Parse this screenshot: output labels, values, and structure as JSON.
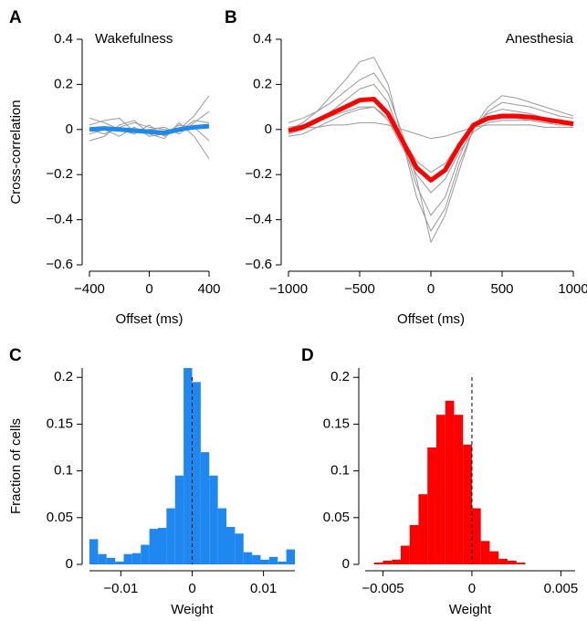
{
  "chart_data": [
    {
      "type": "line",
      "panel_label": "A",
      "annotation": "Wakefulness",
      "xlabel": "Offset (ms)",
      "ylabel": "Cross-correlation",
      "xlim": [
        -400,
        400
      ],
      "ylim": [
        -0.6,
        0.4
      ],
      "xticks": [
        {
          "value": -400,
          "label": "−400"
        },
        0,
        400
      ],
      "yticks": [
        {
          "value": -0.6,
          "label": "−0.6"
        },
        {
          "value": -0.4,
          "label": "−0.4"
        },
        {
          "value": -0.2,
          "label": "−0.2"
        },
        0,
        0.2,
        0.4
      ],
      "x": [
        -400,
        -300,
        -200,
        -100,
        0,
        100,
        200,
        300,
        400
      ],
      "series": [
        {
          "color": "#999999",
          "values": [
            0.05,
            0.03,
            0.0,
            -0.02,
            0.02,
            -0.03,
            0.0,
            0.06,
            0.15
          ]
        },
        {
          "color": "#999999",
          "values": [
            -0.05,
            -0.03,
            0.02,
            0.04,
            -0.02,
            -0.04,
            0.03,
            -0.03,
            -0.13
          ]
        },
        {
          "color": "#999999",
          "values": [
            0.02,
            0.04,
            0.05,
            -0.01,
            0.0,
            0.01,
            -0.02,
            0.03,
            0.08
          ]
        },
        {
          "color": "#999999",
          "values": [
            -0.02,
            0.0,
            -0.03,
            0.01,
            -0.03,
            -0.02,
            0.02,
            0.01,
            -0.05
          ]
        },
        {
          "color": "#999999",
          "values": [
            0.0,
            -0.02,
            0.01,
            0.03,
            0.01,
            0.0,
            -0.01,
            0.04,
            0.03
          ]
        },
        {
          "color": "#1f8be8",
          "values": [
            0.0,
            0.005,
            0.0,
            -0.005,
            -0.01,
            -0.015,
            0.0,
            0.01,
            0.015
          ]
        }
      ]
    },
    {
      "type": "line",
      "panel_label": "B",
      "annotation": "Anesthesia",
      "xlabel": "Offset (ms)",
      "xlim": [
        -1000,
        1000
      ],
      "ylim": [
        -0.6,
        0.4
      ],
      "xticks": [
        {
          "value": -1000,
          "label": "−1000"
        },
        {
          "value": -500,
          "label": "−500"
        },
        0,
        500,
        1000
      ],
      "yticks": [
        {
          "value": -0.6,
          "label": "−0.6"
        },
        {
          "value": -0.4,
          "label": "−0.4"
        },
        {
          "value": -0.2,
          "label": "−0.2"
        },
        0,
        0.2,
        0.4
      ],
      "x": [
        -1000,
        -900,
        -800,
        -700,
        -600,
        -500,
        -400,
        -300,
        -200,
        -100,
        0,
        100,
        200,
        300,
        400,
        500,
        600,
        700,
        800,
        900,
        1000
      ],
      "series": [
        {
          "color": "#999999",
          "values": [
            0.0,
            0.03,
            0.08,
            0.15,
            0.22,
            0.3,
            0.32,
            0.2,
            -0.05,
            -0.3,
            -0.45,
            -0.35,
            -0.15,
            0.0,
            0.08,
            0.12,
            0.11,
            0.1,
            0.08,
            0.06,
            0.05
          ]
        },
        {
          "color": "#999999",
          "values": [
            -0.02,
            0.0,
            0.03,
            0.08,
            0.13,
            0.18,
            0.2,
            0.12,
            -0.05,
            -0.25,
            -0.38,
            -0.3,
            -0.12,
            0.02,
            0.07,
            0.09,
            0.08,
            0.07,
            0.05,
            0.04,
            0.03
          ]
        },
        {
          "color": "#999999",
          "values": [
            0.01,
            0.02,
            0.04,
            0.06,
            0.08,
            0.1,
            0.1,
            0.05,
            -0.04,
            -0.14,
            -0.19,
            -0.15,
            -0.06,
            0.01,
            0.04,
            0.05,
            0.05,
            0.04,
            0.03,
            0.03,
            0.02
          ]
        },
        {
          "color": "#999999",
          "values": [
            0.0,
            0.01,
            0.01,
            0.02,
            0.02,
            0.03,
            0.03,
            0.02,
            0.0,
            -0.02,
            -0.04,
            -0.03,
            -0.01,
            0.01,
            0.02,
            0.02,
            0.02,
            0.02,
            0.01,
            0.01,
            0.01
          ]
        },
        {
          "color": "#999999",
          "values": [
            0.03,
            0.05,
            0.08,
            0.12,
            0.17,
            0.22,
            0.25,
            0.16,
            -0.02,
            -0.22,
            -0.5,
            -0.38,
            -0.18,
            0.01,
            0.1,
            0.15,
            0.14,
            0.12,
            0.1,
            0.08,
            0.06
          ]
        },
        {
          "color": "#999999",
          "values": [
            -0.03,
            -0.02,
            0.01,
            0.04,
            0.07,
            0.09,
            0.1,
            0.04,
            -0.08,
            -0.2,
            -0.28,
            -0.22,
            -0.1,
            -0.01,
            0.03,
            0.04,
            0.04,
            0.04,
            0.03,
            0.02,
            0.02
          ]
        },
        {
          "color": "#ff0000",
          "values": [
            -0.005,
            0.01,
            0.04,
            0.07,
            0.1,
            0.13,
            0.135,
            0.07,
            -0.05,
            -0.17,
            -0.225,
            -0.18,
            -0.07,
            0.02,
            0.05,
            0.06,
            0.06,
            0.055,
            0.045,
            0.035,
            0.025
          ]
        }
      ]
    },
    {
      "type": "histogram",
      "panel_label": "C",
      "xlabel": "Weight",
      "ylabel": "Fraction of cells",
      "color": "#1e88f0",
      "vline": 0,
      "xlim": [
        -0.0144,
        0.0144
      ],
      "ylim": [
        0,
        0.21
      ],
      "xticks": [
        {
          "value": -0.01,
          "label": "−0.01"
        },
        0,
        0.01
      ],
      "yticks": [
        0,
        0.05,
        0.1,
        0.15,
        0.2
      ],
      "bins": [
        -0.0144,
        -0.0132,
        -0.012,
        -0.0108,
        -0.0096,
        -0.0084,
        -0.0072,
        -0.006,
        -0.0048,
        -0.0036,
        -0.0024,
        -0.0012,
        0,
        0.0012,
        0.0024,
        0.0036,
        0.0048,
        0.006,
        0.0072,
        0.0084,
        0.0096,
        0.0108,
        0.012,
        0.0132,
        0.0144
      ],
      "values": [
        0.027,
        0.011,
        0.007,
        0.003,
        0.011,
        0.012,
        0.021,
        0.038,
        0.039,
        0.06,
        0.095,
        0.21,
        0.195,
        0.12,
        0.095,
        0.06,
        0.04,
        0.033,
        0.013,
        0.01,
        0.005,
        0.008,
        0.003,
        0.016
      ]
    },
    {
      "type": "histogram",
      "panel_label": "D",
      "xlabel": "Weight",
      "color": "#ff0000",
      "vline": 0,
      "xlim": [
        -0.006,
        0.0058
      ],
      "ylim": [
        0,
        0.21
      ],
      "xticks": [
        {
          "value": -0.005,
          "label": "−0.005"
        },
        0,
        0.005
      ],
      "yticks": [
        0,
        0.05,
        0.1,
        0.15,
        0.2
      ],
      "bins": [
        -0.0055,
        -0.005,
        -0.0045,
        -0.004,
        -0.0035,
        -0.003,
        -0.0025,
        -0.002,
        -0.0015,
        -0.001,
        -0.0005,
        0,
        0.0005,
        0.001,
        0.0015,
        0.002,
        0.0025,
        0.003
      ],
      "values": [
        0.002,
        0.004,
        0.005,
        0.02,
        0.042,
        0.075,
        0.125,
        0.16,
        0.175,
        0.16,
        0.128,
        0.06,
        0.025,
        0.014,
        0.006,
        0.004,
        0.002
      ]
    }
  ]
}
